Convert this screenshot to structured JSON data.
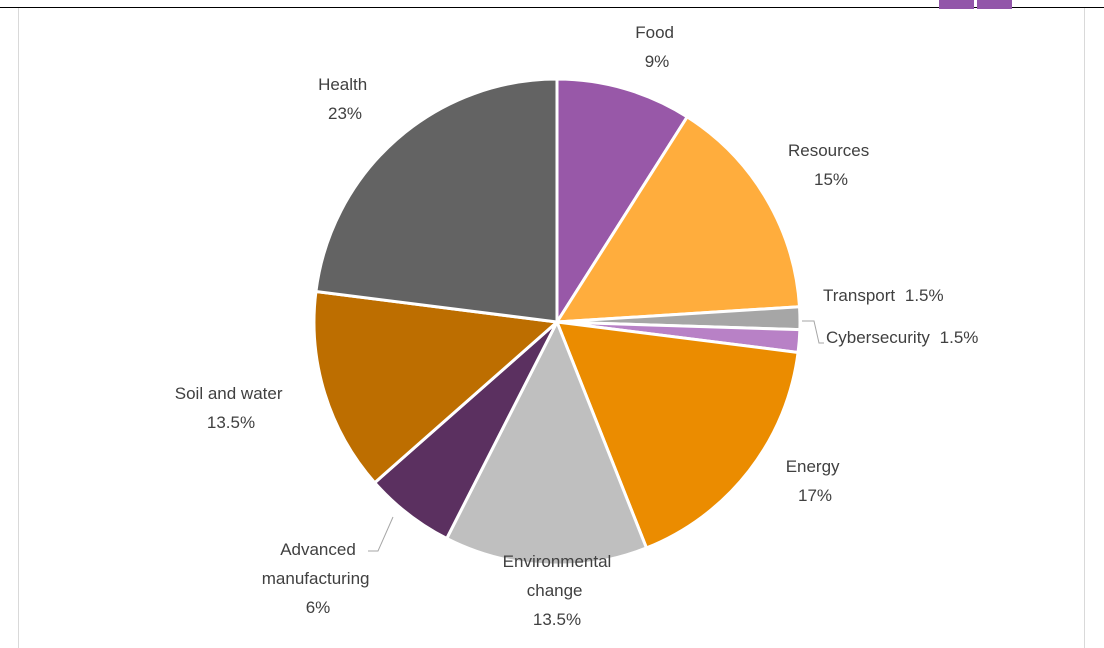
{
  "chart_data": {
    "type": "pie",
    "title": "",
    "slices": [
      {
        "label": "Food",
        "value": 9,
        "value_label": "9%",
        "color": "#9858a8"
      },
      {
        "label": "Resources",
        "value": 15,
        "value_label": "15%",
        "color": "#ffad3d"
      },
      {
        "label": "Transport",
        "value": 1.5,
        "value_label": "1.5%",
        "color": "#a6a6a6"
      },
      {
        "label": "Cybersecurity",
        "value": 1.5,
        "value_label": "1.5%",
        "color": "#b881c6"
      },
      {
        "label": "Energy",
        "value": 17,
        "value_label": "17%",
        "color": "#eb8c00"
      },
      {
        "label": "Environmental change",
        "value": 13.5,
        "value_label": "13.5%",
        "color": "#bfbfbf"
      },
      {
        "label": "Advanced manufacturing",
        "value": 6,
        "value_label": "6%",
        "color": "#5b3060"
      },
      {
        "label": "Soil and water",
        "value": 13.5,
        "value_label": "13.5%",
        "color": "#bd6e00"
      },
      {
        "label": "Health",
        "value": 23,
        "value_label": "23%",
        "color": "#636363"
      }
    ],
    "legend": "none",
    "data_labels": "outside"
  },
  "branding": {
    "logo_color": "#9256a9"
  }
}
